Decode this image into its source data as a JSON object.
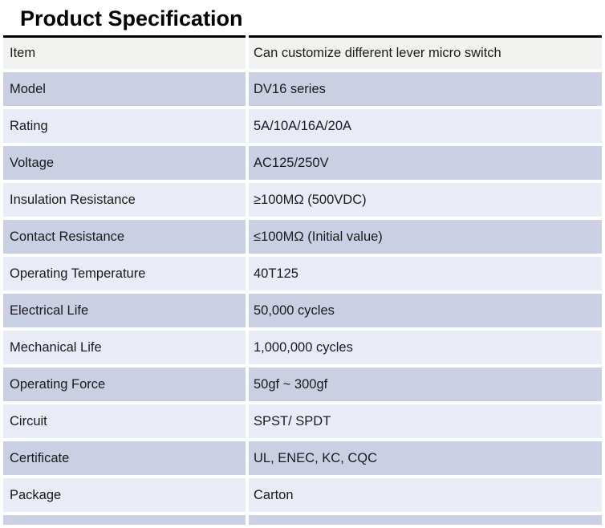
{
  "title": "Product Specification",
  "colors": {
    "header_row_bg": "#f2f2f1",
    "row_dark_bg": "#cbcfe4",
    "row_light_bg": "#e9ebf6",
    "top_border": "#000000",
    "text": "#1a1a1a",
    "title_color": "#000000"
  },
  "table": {
    "rows": [
      {
        "label": "Item",
        "value": "Can customize different lever micro switch",
        "shade": "gray"
      },
      {
        "label": "Model",
        "value": "DV16 series",
        "shade": "dark"
      },
      {
        "label": "Rating",
        "value": "5A/10A/16A/20A",
        "shade": "light"
      },
      {
        "label": "Voltage",
        "value": "AC125/250V",
        "shade": "dark"
      },
      {
        "label": "Insulation Resistance",
        "value": "≥100MΩ (500VDC)",
        "shade": "light"
      },
      {
        "label": "Contact Resistance",
        "value": "≤100MΩ (Initial value)",
        "shade": "dark"
      },
      {
        "label": "Operating Temperature",
        "value": "40T125",
        "shade": "light"
      },
      {
        "label": "Electrical Life",
        "value": "50,000 cycles",
        "shade": "dark"
      },
      {
        "label": "Mechanical Life",
        "value": "1,000,000 cycles",
        "shade": "light"
      },
      {
        "label": "Operating Force",
        "value": "50gf ~ 300gf",
        "shade": "dark"
      },
      {
        "label": "Circuit",
        "value": "SPST/ SPDT",
        "shade": "light"
      },
      {
        "label": "Certificate",
        "value": "UL, ENEC, KC, CQC",
        "shade": "dark"
      },
      {
        "label": "Package",
        "value": "Carton",
        "shade": "light"
      }
    ]
  }
}
